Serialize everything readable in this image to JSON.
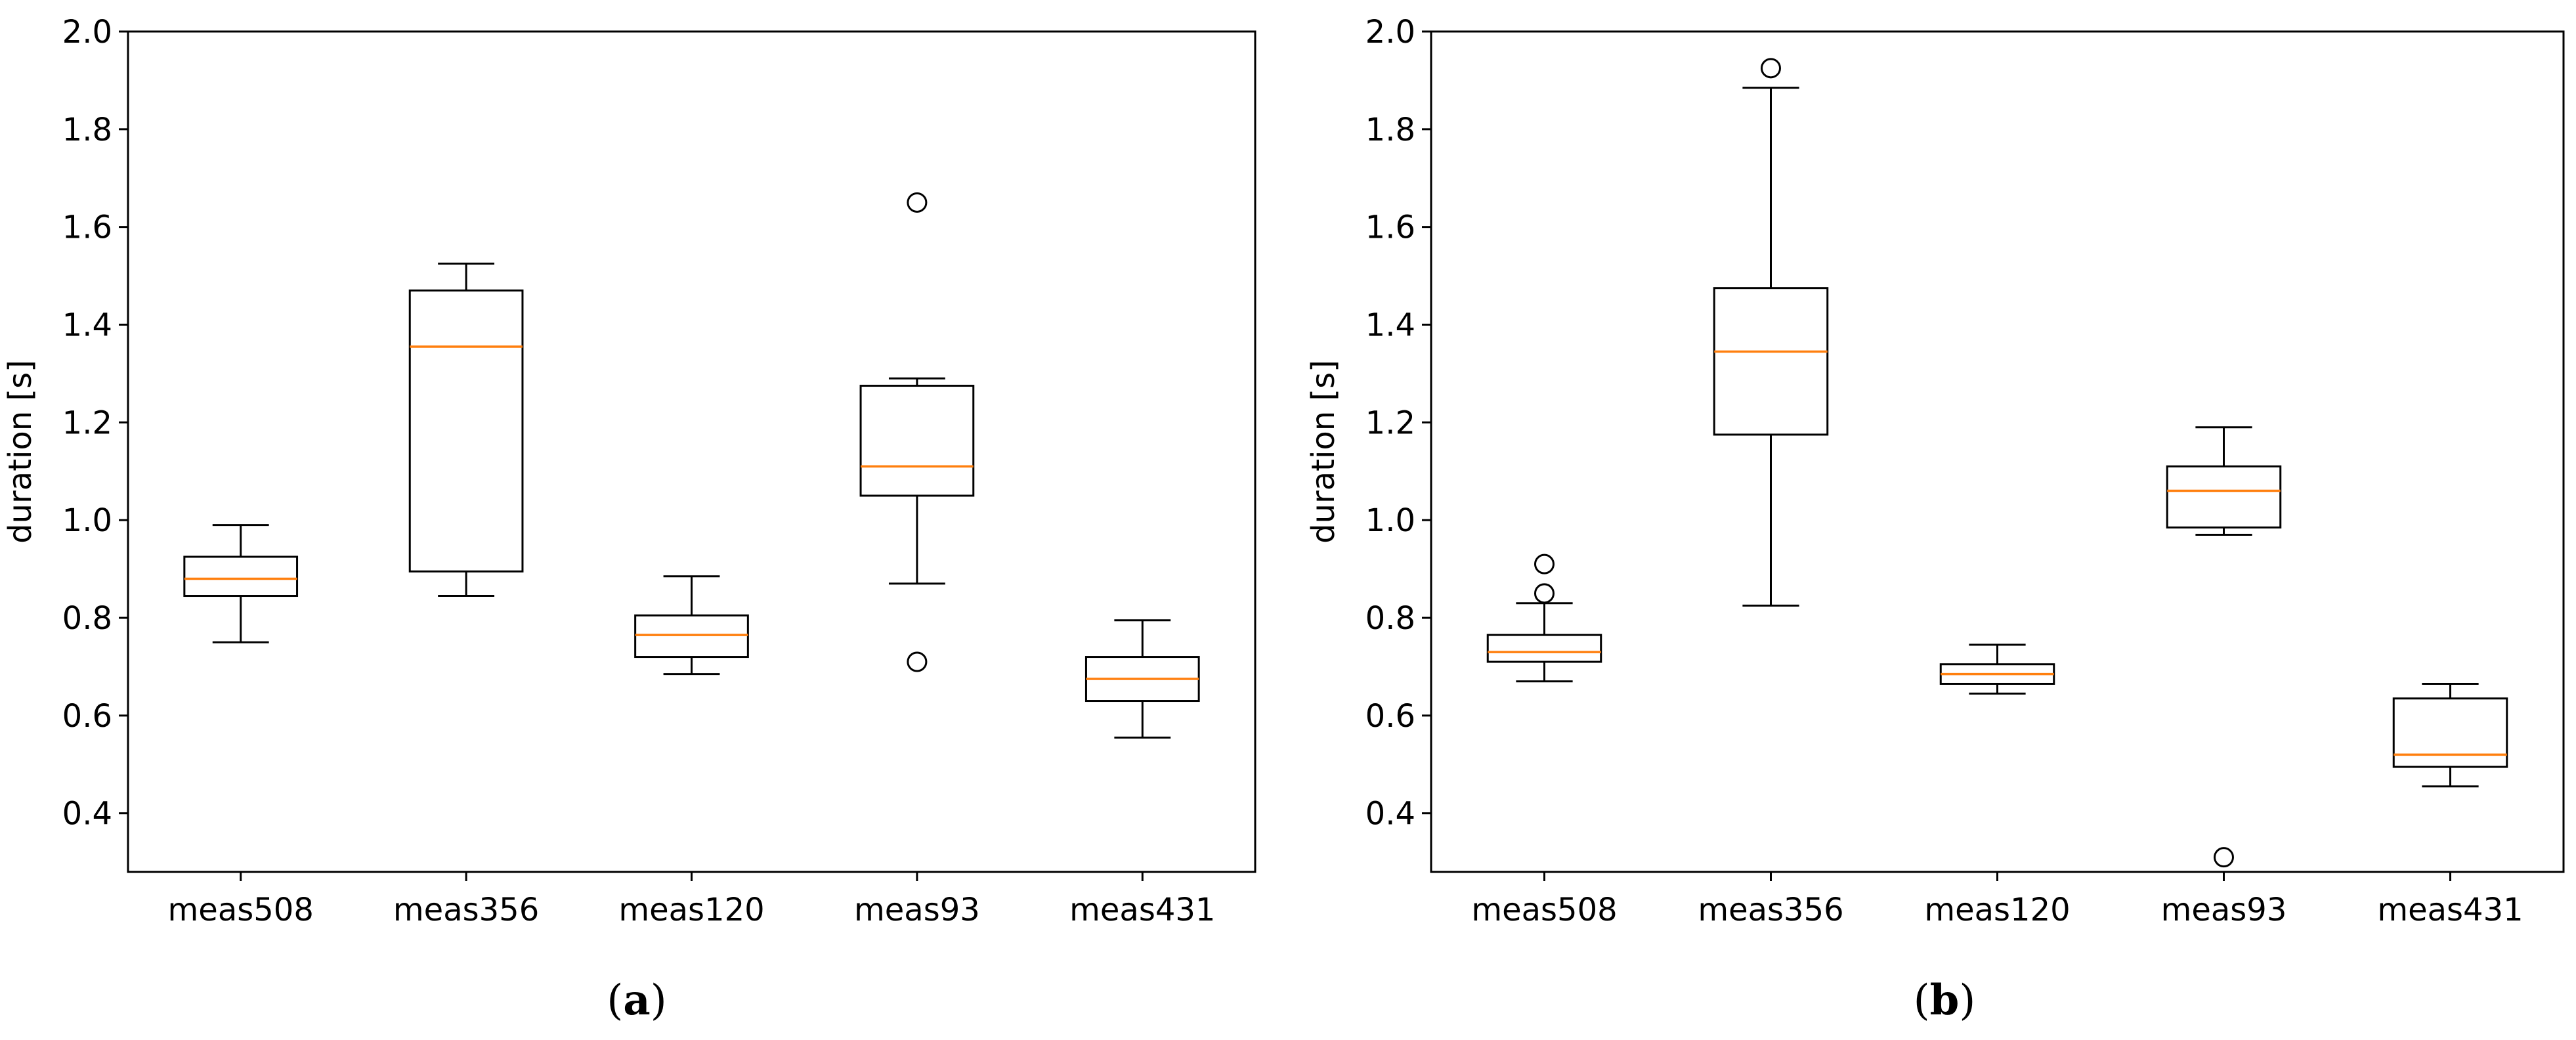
{
  "chart_data": [
    {
      "type": "boxplot",
      "caption_letter": "a",
      "ylabel": "duration [s]",
      "ylim": [
        0.28,
        2.0
      ],
      "yticks": [
        "0.4",
        "0.6",
        "0.8",
        "1.0",
        "1.2",
        "1.4",
        "1.6",
        "1.8",
        "2.0"
      ],
      "ytick_values": [
        0.4,
        0.6,
        0.8,
        1.0,
        1.2,
        1.4,
        1.6,
        1.8,
        2.0
      ],
      "categories": [
        "meas508",
        "meas356",
        "meas120",
        "meas93",
        "meas431"
      ],
      "boxes": [
        {
          "whisker_low": 0.75,
          "q1": 0.845,
          "median": 0.88,
          "q3": 0.925,
          "whisker_high": 0.99,
          "outliers": []
        },
        {
          "whisker_low": 0.845,
          "q1": 0.895,
          "median": 1.355,
          "q3": 1.47,
          "whisker_high": 1.525,
          "outliers": []
        },
        {
          "whisker_low": 0.685,
          "q1": 0.72,
          "median": 0.765,
          "q3": 0.805,
          "whisker_high": 0.885,
          "outliers": []
        },
        {
          "whisker_low": 0.87,
          "q1": 1.05,
          "median": 1.11,
          "q3": 1.275,
          "whisker_high": 1.29,
          "outliers": [
            1.65,
            0.71
          ]
        },
        {
          "whisker_low": 0.555,
          "q1": 0.63,
          "median": 0.675,
          "q3": 0.72,
          "whisker_high": 0.795,
          "outliers": []
        }
      ]
    },
    {
      "type": "boxplot",
      "caption_letter": "b",
      "ylabel": "duration [s]",
      "ylim": [
        0.28,
        2.0
      ],
      "yticks": [
        "0.4",
        "0.6",
        "0.8",
        "1.0",
        "1.2",
        "1.4",
        "1.6",
        "1.8",
        "2.0"
      ],
      "ytick_values": [
        0.4,
        0.6,
        0.8,
        1.0,
        1.2,
        1.4,
        1.6,
        1.8,
        2.0
      ],
      "categories": [
        "meas508",
        "meas356",
        "meas120",
        "meas93",
        "meas431"
      ],
      "boxes": [
        {
          "whisker_low": 0.67,
          "q1": 0.71,
          "median": 0.73,
          "q3": 0.765,
          "whisker_high": 0.83,
          "outliers": [
            0.91,
            0.85
          ]
        },
        {
          "whisker_low": 0.825,
          "q1": 1.175,
          "median": 1.345,
          "q3": 1.475,
          "whisker_high": 1.885,
          "outliers": [
            1.925
          ]
        },
        {
          "whisker_low": 0.645,
          "q1": 0.665,
          "median": 0.685,
          "q3": 0.705,
          "whisker_high": 0.745,
          "outliers": []
        },
        {
          "whisker_low": 0.97,
          "q1": 0.985,
          "median": 1.06,
          "q3": 1.11,
          "whisker_high": 1.19,
          "outliers": [
            0.31
          ]
        },
        {
          "whisker_low": 0.455,
          "q1": 0.495,
          "median": 0.52,
          "q3": 0.635,
          "whisker_high": 0.665,
          "outliers": []
        }
      ]
    }
  ],
  "colors": {
    "box": "#000000",
    "median": "#ff7f0e",
    "outlier": "#000000"
  }
}
